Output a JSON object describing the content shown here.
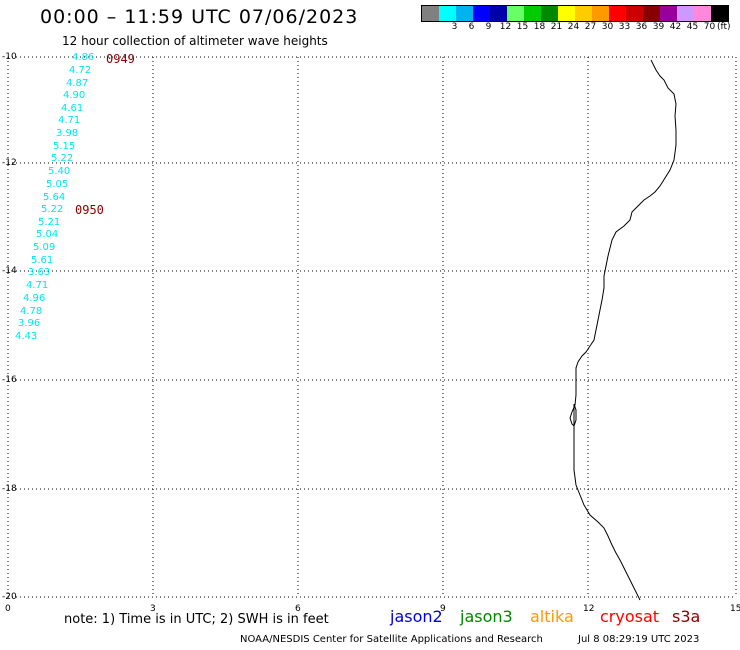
{
  "title": "00:00 – 11:59 UTC 07/06/2023",
  "subtitle": "12 hour collection of altimeter wave heights",
  "color_scale": {
    "unit": "(ft)",
    "swatches": [
      {
        "color": "#808080",
        "label": ""
      },
      {
        "color": "#00ffff",
        "label": "3"
      },
      {
        "color": "#00b2ee",
        "label": "6"
      },
      {
        "color": "#0000ff",
        "label": "9"
      },
      {
        "color": "#0000aa",
        "label": "12"
      },
      {
        "color": "#66ff66",
        "label": "15"
      },
      {
        "color": "#00cc00",
        "label": "18"
      },
      {
        "color": "#008800",
        "label": "21"
      },
      {
        "color": "#ffff00",
        "label": "24"
      },
      {
        "color": "#ffcc00",
        "label": "27"
      },
      {
        "color": "#ff9900",
        "label": "30"
      },
      {
        "color": "#ff0000",
        "label": "33"
      },
      {
        "color": "#cc0000",
        "label": "36"
      },
      {
        "color": "#880000",
        "label": "39"
      },
      {
        "color": "#990099",
        "label": "42"
      },
      {
        "color": "#cc99ff",
        "label": "45"
      },
      {
        "color": "#ff88dd",
        "label": "70"
      },
      {
        "color": "#000000",
        "label": ""
      }
    ]
  },
  "axes": {
    "y_labels": [
      "-10",
      "-12",
      "-14",
      "-16",
      "-18",
      "-20"
    ],
    "x_labels": [
      "0",
      "3",
      "6",
      "9",
      "12",
      "15"
    ]
  },
  "wave_heights": [
    "4.86",
    "4.72",
    "4.87",
    "4.90",
    "4.61",
    "4.71",
    "3.98",
    "5.15",
    "5.22",
    "5.40",
    "5.05",
    "5.64",
    "5.22",
    "5.21",
    "5.04",
    "5.09",
    "5.61",
    "3.63",
    "4.71",
    "4.96",
    "4.78",
    "3.96",
    "4.43"
  ],
  "time_markers": [
    "0949",
    "0950"
  ],
  "note": "note: 1) Time is in UTC; 2) SWH is in feet",
  "satellites": [
    {
      "name": "jason2",
      "color": "#0000dd"
    },
    {
      "name": "jason3",
      "color": "#008800"
    },
    {
      "name": "altika",
      "color": "#ff9900"
    },
    {
      "name": "cryosat",
      "color": "#ff0000"
    },
    {
      "name": "s3a",
      "color": "#8b0000"
    }
  ],
  "credit": "NOAA/NESDIS Center for Satellite Applications and Research",
  "timestamp": "Jul 8 08:29:19 UTC 2023"
}
